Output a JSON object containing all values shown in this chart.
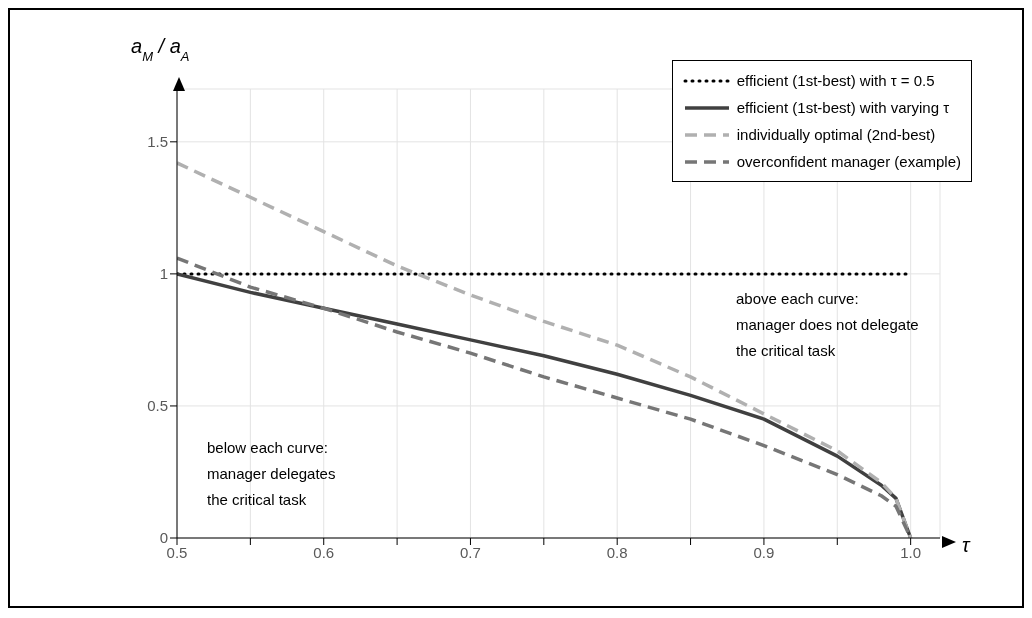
{
  "chart_data": {
    "type": "line",
    "xlabel": "τ",
    "ylabel": "a$_{M}$ / a$_{A}$",
    "x": [
      0.5,
      0.55,
      0.6,
      0.65,
      0.7,
      0.75,
      0.8,
      0.85,
      0.9,
      0.95,
      0.98,
      0.99,
      1.0
    ],
    "series": [
      {
        "name": "efficient (1st-best) with τ = 0.5",
        "color": "#000000",
        "line_style": "dotted",
        "values": [
          1,
          1,
          1,
          1,
          1,
          1,
          1,
          1,
          1,
          1,
          1,
          1,
          1
        ]
      },
      {
        "name": "efficient (1st-best) with varying τ",
        "color": "#404040",
        "line_style": "solid",
        "values": [
          1,
          0.93,
          0.87,
          0.81,
          0.75,
          0.69,
          0.62,
          0.54,
          0.45,
          0.31,
          0.2,
          0.15,
          0
        ]
      },
      {
        "name": "individually optimal (2nd-best)",
        "color": "#b0b0b0",
        "line_style": "dashed",
        "values": [
          1.42,
          1.29,
          1.16,
          1.03,
          0.92,
          0.82,
          0.73,
          0.61,
          0.47,
          0.33,
          0.21,
          0.15,
          0
        ]
      },
      {
        "name": "overconfident manager (example)",
        "color": "#767676",
        "line_style": "dashed",
        "values": [
          1.06,
          0.95,
          0.87,
          0.78,
          0.7,
          0.61,
          0.53,
          0.45,
          0.35,
          0.24,
          0.16,
          0.12,
          0
        ]
      }
    ],
    "xlim": [
      0.5,
      1.02
    ],
    "xticks": [
      {
        "value": 0.5,
        "label": "0.5"
      },
      {
        "value": 0.55,
        "label": null
      },
      {
        "value": 0.6,
        "label": "0.6"
      },
      {
        "value": 0.65,
        "label": null
      },
      {
        "value": 0.7,
        "label": "0.7"
      },
      {
        "value": 0.75,
        "label": null
      },
      {
        "value": 0.8,
        "label": "0.8"
      },
      {
        "value": 0.85,
        "label": null
      },
      {
        "value": 0.9,
        "label": "0.9"
      },
      {
        "value": 0.95,
        "label": null
      },
      {
        "value": 1.0,
        "label": "1.0"
      }
    ],
    "ylim": [
      0,
      1.7
    ],
    "yticks": [
      0,
      0.5,
      1,
      1.5
    ],
    "grid": true,
    "legend": "top right",
    "marker": "none",
    "annotations": [
      "above each curve:\nmanager does not delegate\nthe critical task",
      "below each curve:\nmanager delegates\nthe critical task"
    ]
  }
}
